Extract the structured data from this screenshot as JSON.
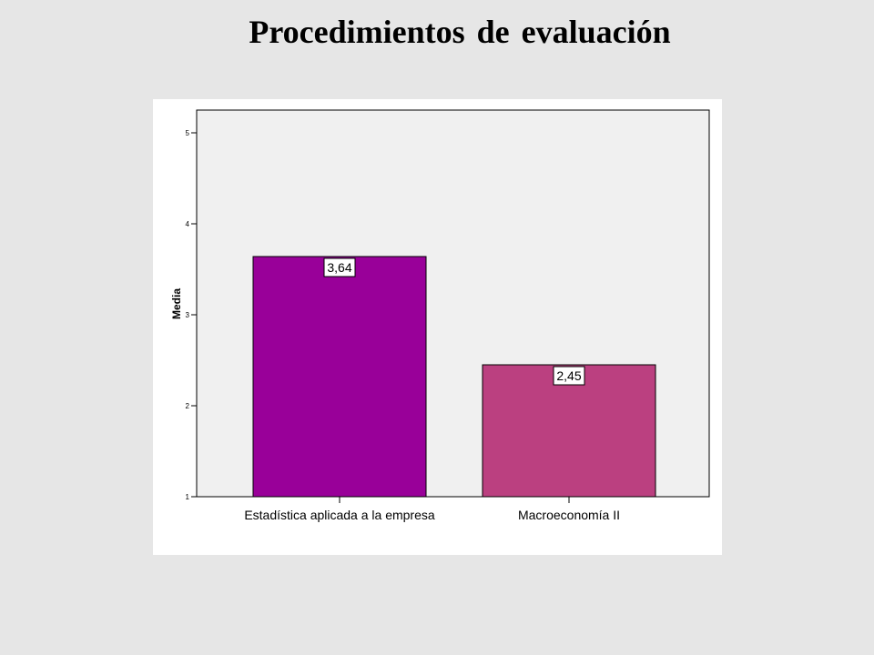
{
  "slide": {
    "title": "Procedimientos de evaluación"
  },
  "colors": {
    "background": "#e6e6e6",
    "plot_area": "#f0f0f0",
    "panel": "#ffffff"
  },
  "chart_data": {
    "type": "bar",
    "title": "",
    "xlabel": "",
    "ylabel": "Media",
    "ylim": [
      1,
      5
    ],
    "yticks": [
      "1",
      "2",
      "3",
      "4",
      "5"
    ],
    "categories": [
      "Estadística aplicada a la empresa",
      "Macroeconomía II"
    ],
    "values": [
      3.64,
      2.45
    ],
    "data_labels": [
      "3,64",
      "2,45"
    ],
    "bar_colors": [
      "#990099",
      "#bb4080"
    ],
    "grid": false,
    "legend": "none"
  }
}
